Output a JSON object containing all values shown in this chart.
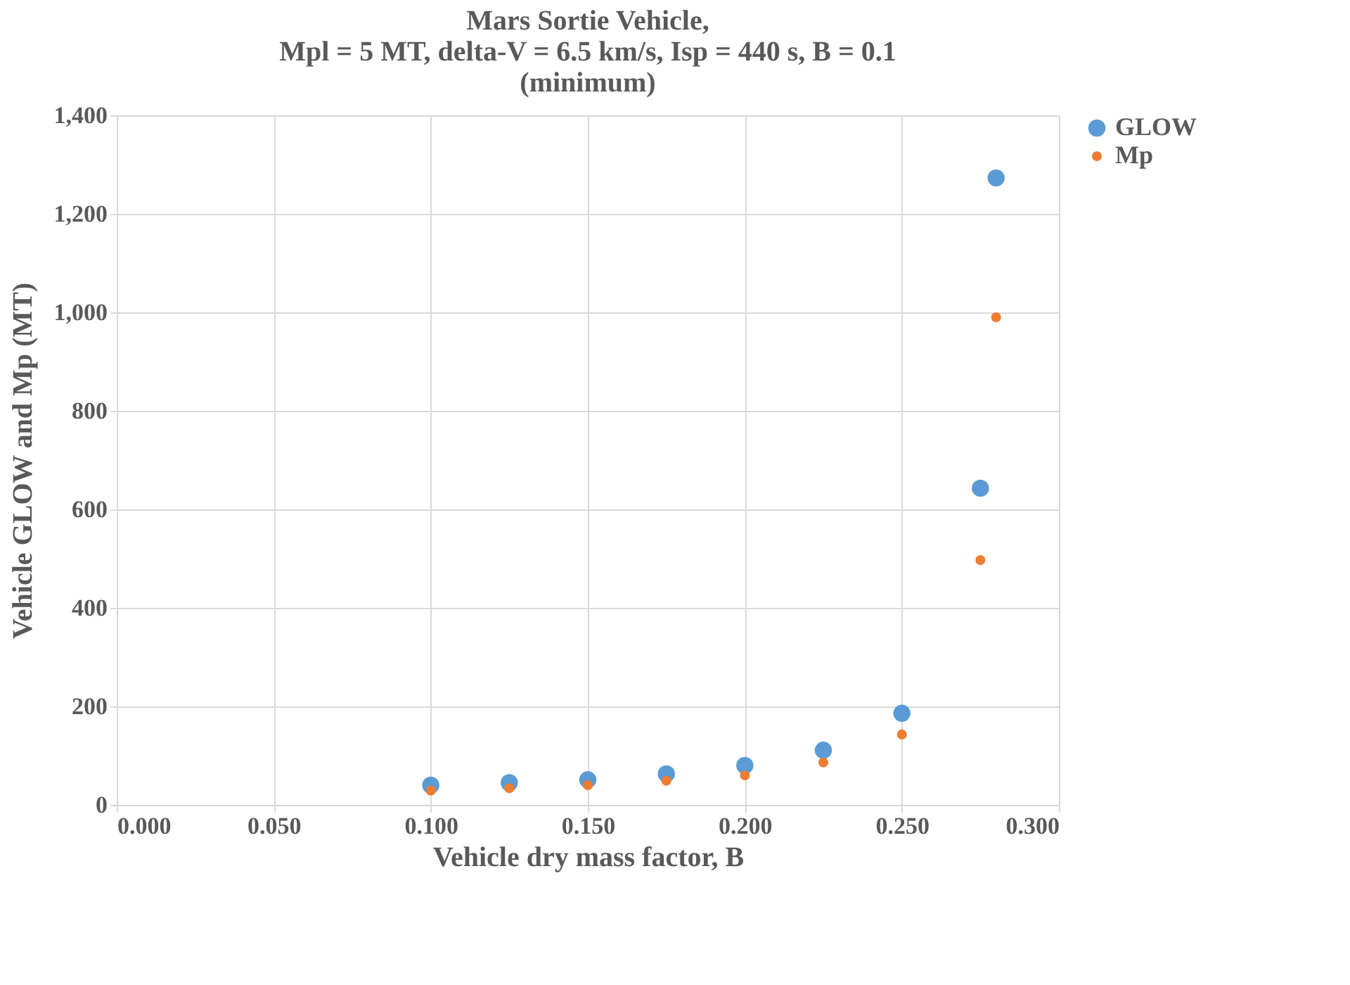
{
  "chart_data": {
    "type": "scatter",
    "title": "Mars Sortie Vehicle,\nMpl = 5 MT, delta-V = 6.5 km/s, Isp = 440 s, B = 0.1\n(minimum)",
    "xlabel": "Vehicle dry mass factor, B",
    "ylabel": "Vehicle GLOW and Mp (MT)",
    "x": [
      0.1,
      0.125,
      0.15,
      0.175,
      0.2,
      0.225,
      0.25,
      0.275,
      0.28
    ],
    "series": [
      {
        "name": "GLOW",
        "color": "#5b9bd5",
        "values": [
          40,
          45,
          51,
          63,
          80,
          111,
          186,
          643,
          1273
        ]
      },
      {
        "name": "Mp",
        "color": "#ed7d31",
        "values": [
          29,
          34,
          40,
          49,
          60,
          86,
          143,
          497,
          990
        ]
      }
    ],
    "xlim": [
      0,
      0.3
    ],
    "xticks": [
      {
        "value": 0,
        "label": "0.000"
      },
      {
        "value": 0.05,
        "label": "0.050"
      },
      {
        "value": 0.1,
        "label": "0.100"
      },
      {
        "value": 0.15,
        "label": "0.150"
      },
      {
        "value": 0.2,
        "label": "0.200"
      },
      {
        "value": 0.25,
        "label": "0.250"
      },
      {
        "value": 0.3,
        "label": "0.300"
      }
    ],
    "ylim": [
      0,
      1400
    ],
    "yticks": [
      0,
      200,
      400,
      600,
      800,
      {
        "value": 1000,
        "label": "1,000"
      },
      {
        "value": 1200,
        "label": "1,200"
      },
      {
        "value": 1400,
        "label": "1,400"
      }
    ],
    "grid": true,
    "legend": "right",
    "marker": "circle"
  }
}
